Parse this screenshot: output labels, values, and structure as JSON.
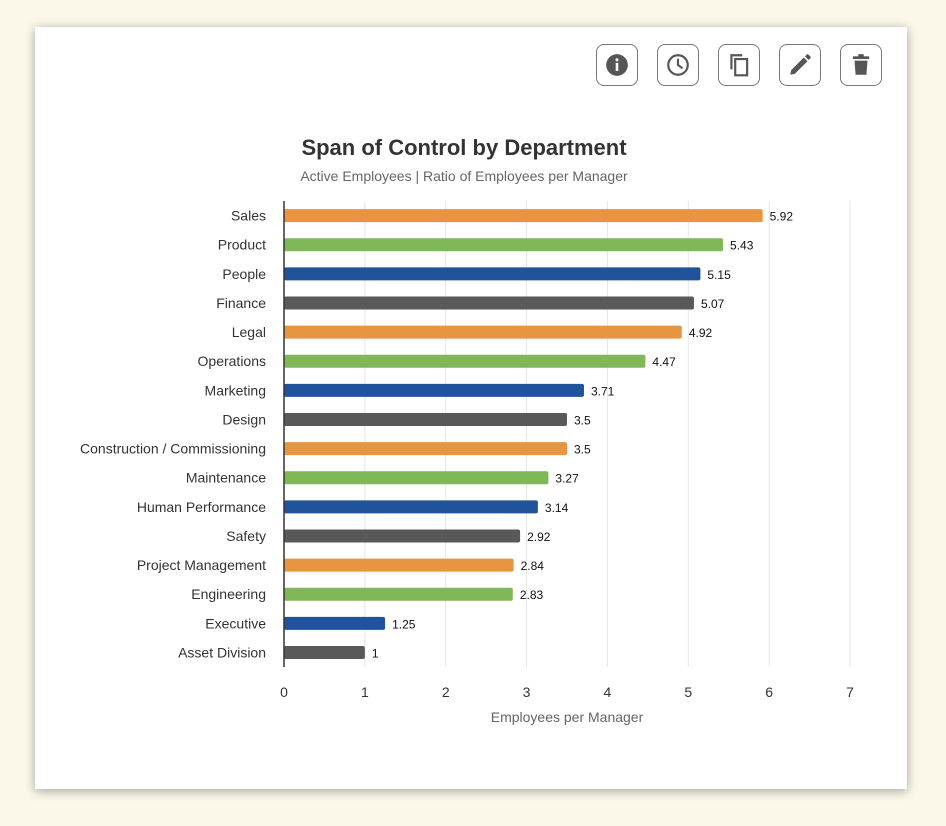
{
  "toolbar": {
    "buttons": [
      {
        "name": "info-button",
        "icon": "info-icon"
      },
      {
        "name": "history-button",
        "icon": "clock-icon"
      },
      {
        "name": "copy-button",
        "icon": "copy-icon"
      },
      {
        "name": "edit-button",
        "icon": "pencil-icon"
      },
      {
        "name": "delete-button",
        "icon": "trash-icon"
      }
    ]
  },
  "colors": {
    "orange": "#e89541",
    "green": "#80b757",
    "blue": "#21539a",
    "gray": "#595959",
    "grid": "#e6e6e6",
    "axis": "#333333"
  },
  "chart_data": {
    "type": "bar",
    "orientation": "horizontal",
    "title": "Span of Control by Department",
    "subtitle": "Active Employees | Ratio of Employees per Manager",
    "xlabel": "Employees per Manager",
    "ylabel": "",
    "xlim": [
      0,
      7
    ],
    "xticks": [
      0,
      1,
      2,
      3,
      4,
      5,
      6,
      7
    ],
    "grid": true,
    "legend": "none",
    "categories": [
      "Sales",
      "Product",
      "People",
      "Finance",
      "Legal",
      "Operations",
      "Marketing",
      "Design",
      "Construction / Commissioning",
      "Maintenance",
      "Human Performance",
      "Safety",
      "Project Management",
      "Engineering",
      "Executive",
      "Asset Division"
    ],
    "values": [
      5.92,
      5.43,
      5.15,
      5.07,
      4.92,
      4.47,
      3.71,
      3.5,
      3.5,
      3.27,
      3.14,
      2.92,
      2.84,
      2.83,
      1.25,
      1
    ],
    "data_labels": [
      "5.92",
      "5.43",
      "5.15",
      "5.07",
      "4.92",
      "4.47",
      "3.71",
      "3.5",
      "3.5",
      "3.27",
      "3.14",
      "2.92",
      "2.84",
      "2.83",
      "1.25",
      "1"
    ],
    "bar_colors": [
      "#e89541",
      "#80b757",
      "#21539a",
      "#595959",
      "#e89541",
      "#80b757",
      "#21539a",
      "#595959",
      "#e89541",
      "#80b757",
      "#21539a",
      "#595959",
      "#e89541",
      "#80b757",
      "#21539a",
      "#595959"
    ]
  }
}
